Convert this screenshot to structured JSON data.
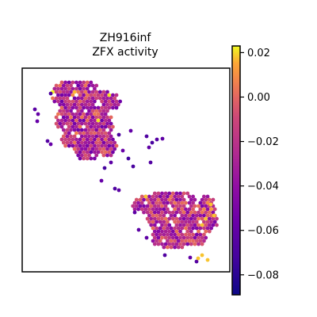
{
  "chart_data": {
    "type": "scatter",
    "title_lines": [
      "ZH916inf",
      "ZFX activity"
    ],
    "xlabel": "",
    "ylabel": "",
    "grid": false,
    "colormap": "plasma",
    "colorbar": {
      "vmin": -0.089,
      "vmax": 0.023,
      "ticks": [
        0.02,
        0.0,
        -0.02,
        -0.04,
        -0.06,
        -0.08
      ],
      "tick_labels": [
        "0.02",
        "0.00",
        "−0.02",
        "−0.04",
        "−0.06",
        "−0.08"
      ]
    },
    "regions": [
      {
        "name": "upper-left tissue",
        "value_range": [
          -0.06,
          0.02
        ]
      },
      {
        "name": "lower-right tissue",
        "value_range": [
          -0.05,
          0.02
        ]
      }
    ]
  }
}
